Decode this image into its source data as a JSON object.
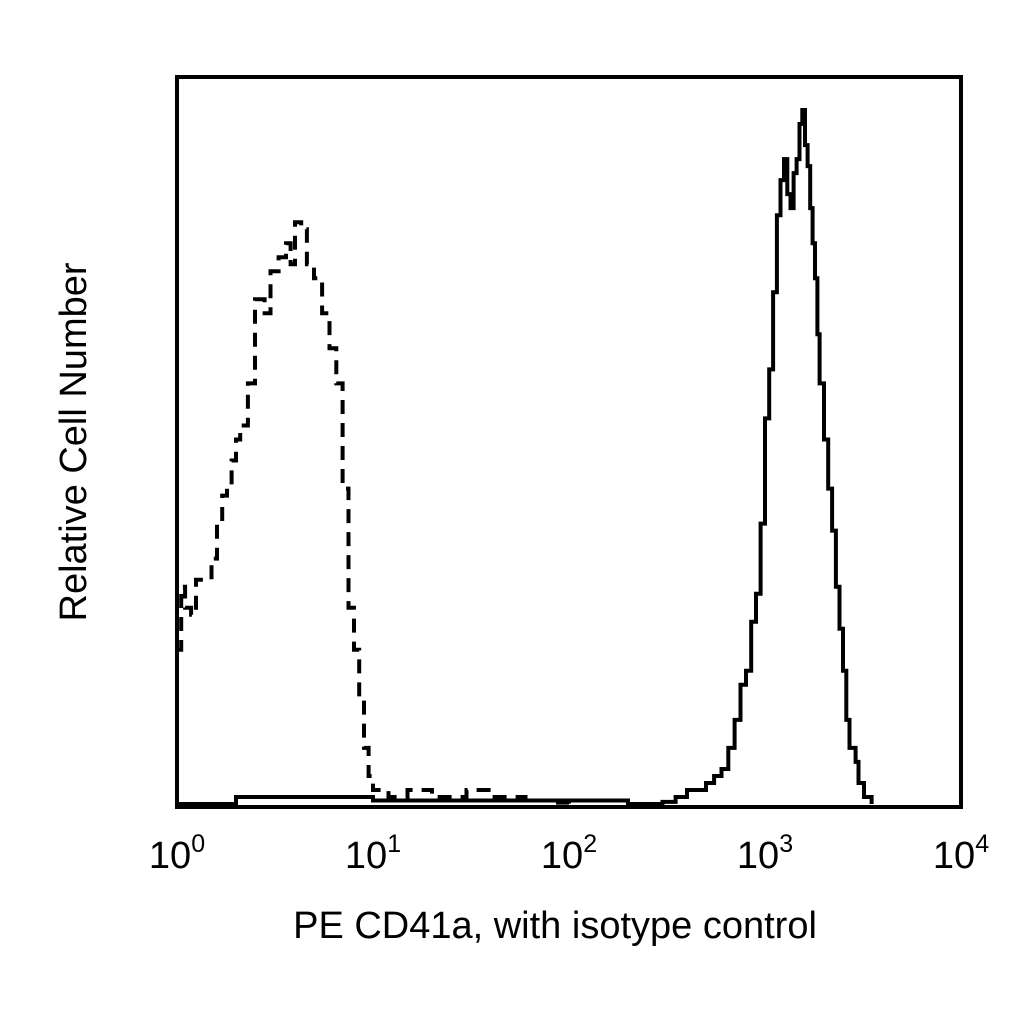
{
  "chart_data": {
    "type": "line",
    "title": "",
    "xlabel": "PE CD41a, with isotype control",
    "ylabel": "Relative Cell Number",
    "x_scale": "log",
    "xlim": [
      1,
      10000
    ],
    "ylim": [
      0,
      100
    ],
    "grid": false,
    "x_ticks": [
      {
        "value": 1,
        "base": "10",
        "exp": "0"
      },
      {
        "value": 10,
        "base": "10",
        "exp": "1"
      },
      {
        "value": 100,
        "base": "10",
        "exp": "2"
      },
      {
        "value": 1000,
        "base": "10",
        "exp": "3"
      },
      {
        "value": 10000,
        "base": "10",
        "exp": "4"
      }
    ],
    "series": [
      {
        "style": "dashed",
        "color": "#000000",
        "points": [
          [
            1.0,
            22
          ],
          [
            1.05,
            31
          ],
          [
            1.1,
            28
          ],
          [
            1.18,
            27
          ],
          [
            1.25,
            32
          ],
          [
            1.35,
            32
          ],
          [
            1.5,
            35
          ],
          [
            1.6,
            40
          ],
          [
            1.7,
            44
          ],
          [
            1.8,
            45
          ],
          [
            1.9,
            49
          ],
          [
            2.0,
            52
          ],
          [
            2.1,
            54
          ],
          [
            2.3,
            60
          ],
          [
            2.5,
            72
          ],
          [
            2.6,
            72
          ],
          [
            2.8,
            70
          ],
          [
            3.0,
            76
          ],
          [
            3.3,
            78
          ],
          [
            3.6,
            80
          ],
          [
            3.8,
            77
          ],
          [
            4.0,
            83
          ],
          [
            4.3,
            82
          ],
          [
            4.6,
            77
          ],
          [
            5.0,
            75
          ],
          [
            5.5,
            70
          ],
          [
            6.0,
            65
          ],
          [
            6.5,
            60
          ],
          [
            7.0,
            45
          ],
          [
            7.5,
            28
          ],
          [
            8.0,
            22
          ],
          [
            8.5,
            15
          ],
          [
            9.0,
            8
          ],
          [
            9.5,
            4
          ],
          [
            10.0,
            2
          ],
          [
            12,
            1
          ],
          [
            15,
            2
          ],
          [
            20,
            1
          ],
          [
            30,
            2
          ],
          [
            40,
            1
          ],
          [
            60,
            0.5
          ],
          [
            80,
            0.2
          ],
          [
            100,
            0
          ]
        ]
      },
      {
        "style": "solid",
        "color": "#000000",
        "points": [
          [
            1.0,
            0
          ],
          [
            2,
            1
          ],
          [
            5,
            1
          ],
          [
            10,
            0.5
          ],
          [
            50,
            0.5
          ],
          [
            200,
            0
          ],
          [
            300,
            0.3
          ],
          [
            350,
            1
          ],
          [
            400,
            2
          ],
          [
            450,
            2
          ],
          [
            500,
            3
          ],
          [
            550,
            4
          ],
          [
            600,
            5
          ],
          [
            650,
            8
          ],
          [
            700,
            12
          ],
          [
            750,
            17
          ],
          [
            800,
            19
          ],
          [
            850,
            26
          ],
          [
            900,
            30
          ],
          [
            950,
            40
          ],
          [
            1000,
            55
          ],
          [
            1050,
            62
          ],
          [
            1100,
            73
          ],
          [
            1150,
            84
          ],
          [
            1200,
            89
          ],
          [
            1250,
            92
          ],
          [
            1300,
            87
          ],
          [
            1350,
            85
          ],
          [
            1400,
            90
          ],
          [
            1450,
            92
          ],
          [
            1500,
            97
          ],
          [
            1550,
            99
          ],
          [
            1600,
            94
          ],
          [
            1650,
            91
          ],
          [
            1700,
            85
          ],
          [
            1750,
            80
          ],
          [
            1800,
            75
          ],
          [
            1850,
            67
          ],
          [
            1900,
            60
          ],
          [
            2000,
            52
          ],
          [
            2100,
            45
          ],
          [
            2200,
            39
          ],
          [
            2300,
            31
          ],
          [
            2400,
            25
          ],
          [
            2500,
            19
          ],
          [
            2600,
            12
          ],
          [
            2700,
            8
          ],
          [
            2900,
            6
          ],
          [
            3000,
            3
          ],
          [
            3200,
            1
          ],
          [
            3500,
            0
          ]
        ]
      }
    ]
  }
}
